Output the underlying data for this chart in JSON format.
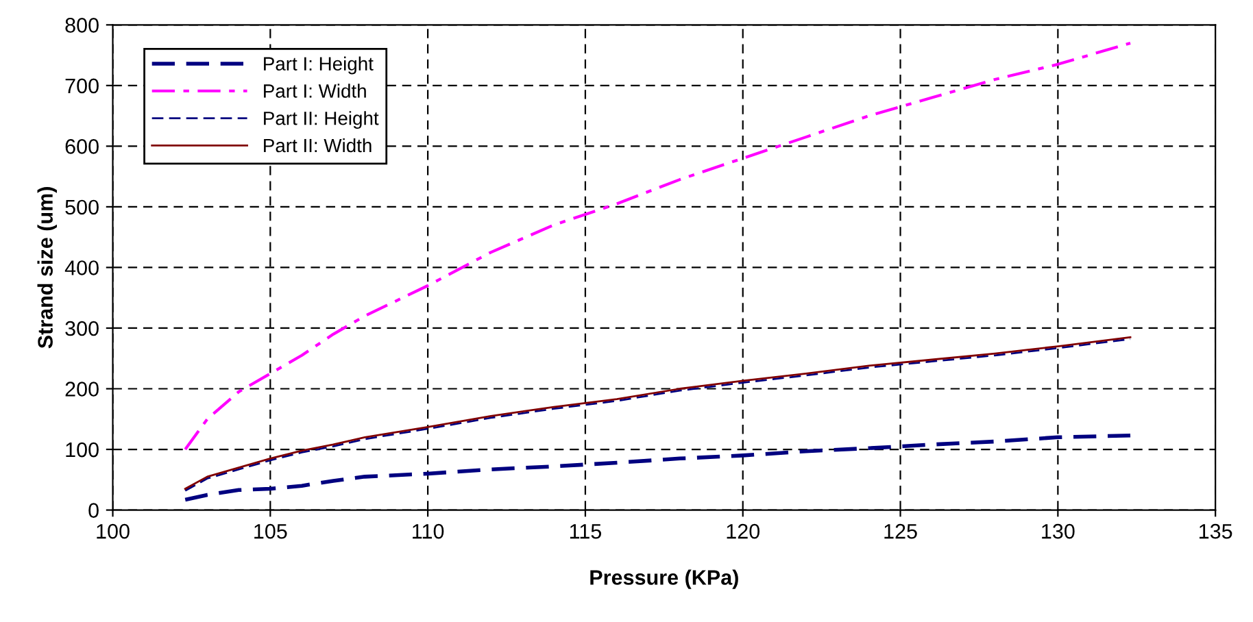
{
  "chart_data": {
    "type": "line",
    "xlabel": "Pressure (KPa)",
    "ylabel": "Strand size (um)",
    "xlim": [
      100,
      135
    ],
    "xticks": [
      100,
      105,
      110,
      115,
      120,
      125,
      130,
      135
    ],
    "ylim": [
      0,
      800
    ],
    "yticks": [
      0,
      100,
      200,
      300,
      400,
      500,
      600,
      700,
      800
    ],
    "grid": true,
    "legend": "top left",
    "marker": "none",
    "x": [
      102.3,
      103,
      104,
      105,
      106,
      107,
      108,
      110,
      112,
      114,
      116,
      118,
      120,
      122,
      124,
      126,
      128,
      130,
      132.3
    ],
    "series": [
      {
        "name": "Part I: Height",
        "color": "#000080",
        "line_style": "dashed",
        "values": [
          17,
          25,
          33,
          35,
          40,
          48,
          55,
          60,
          67,
          72,
          78,
          85,
          90,
          97,
          102,
          108,
          113,
          120,
          123
        ]
      },
      {
        "name": "Part I: Width",
        "color": "#ff00ff",
        "line_style": "dashdot",
        "values": [
          100,
          150,
          195,
          225,
          255,
          290,
          320,
          370,
          425,
          470,
          505,
          545,
          580,
          615,
          650,
          680,
          710,
          735,
          770
        ]
      },
      {
        "name": "Part II: Height",
        "color": "#000080",
        "line_style": "dashed",
        "values": [
          32,
          52,
          67,
          82,
          95,
          105,
          117,
          134,
          152,
          167,
          180,
          197,
          210,
          222,
          235,
          245,
          255,
          267,
          282
        ]
      },
      {
        "name": "Part II: Width",
        "color": "#800000",
        "line_style": "solid",
        "values": [
          35,
          55,
          70,
          85,
          98,
          108,
          120,
          137,
          155,
          170,
          183,
          200,
          213,
          225,
          238,
          248,
          258,
          270,
          285
        ]
      }
    ]
  }
}
